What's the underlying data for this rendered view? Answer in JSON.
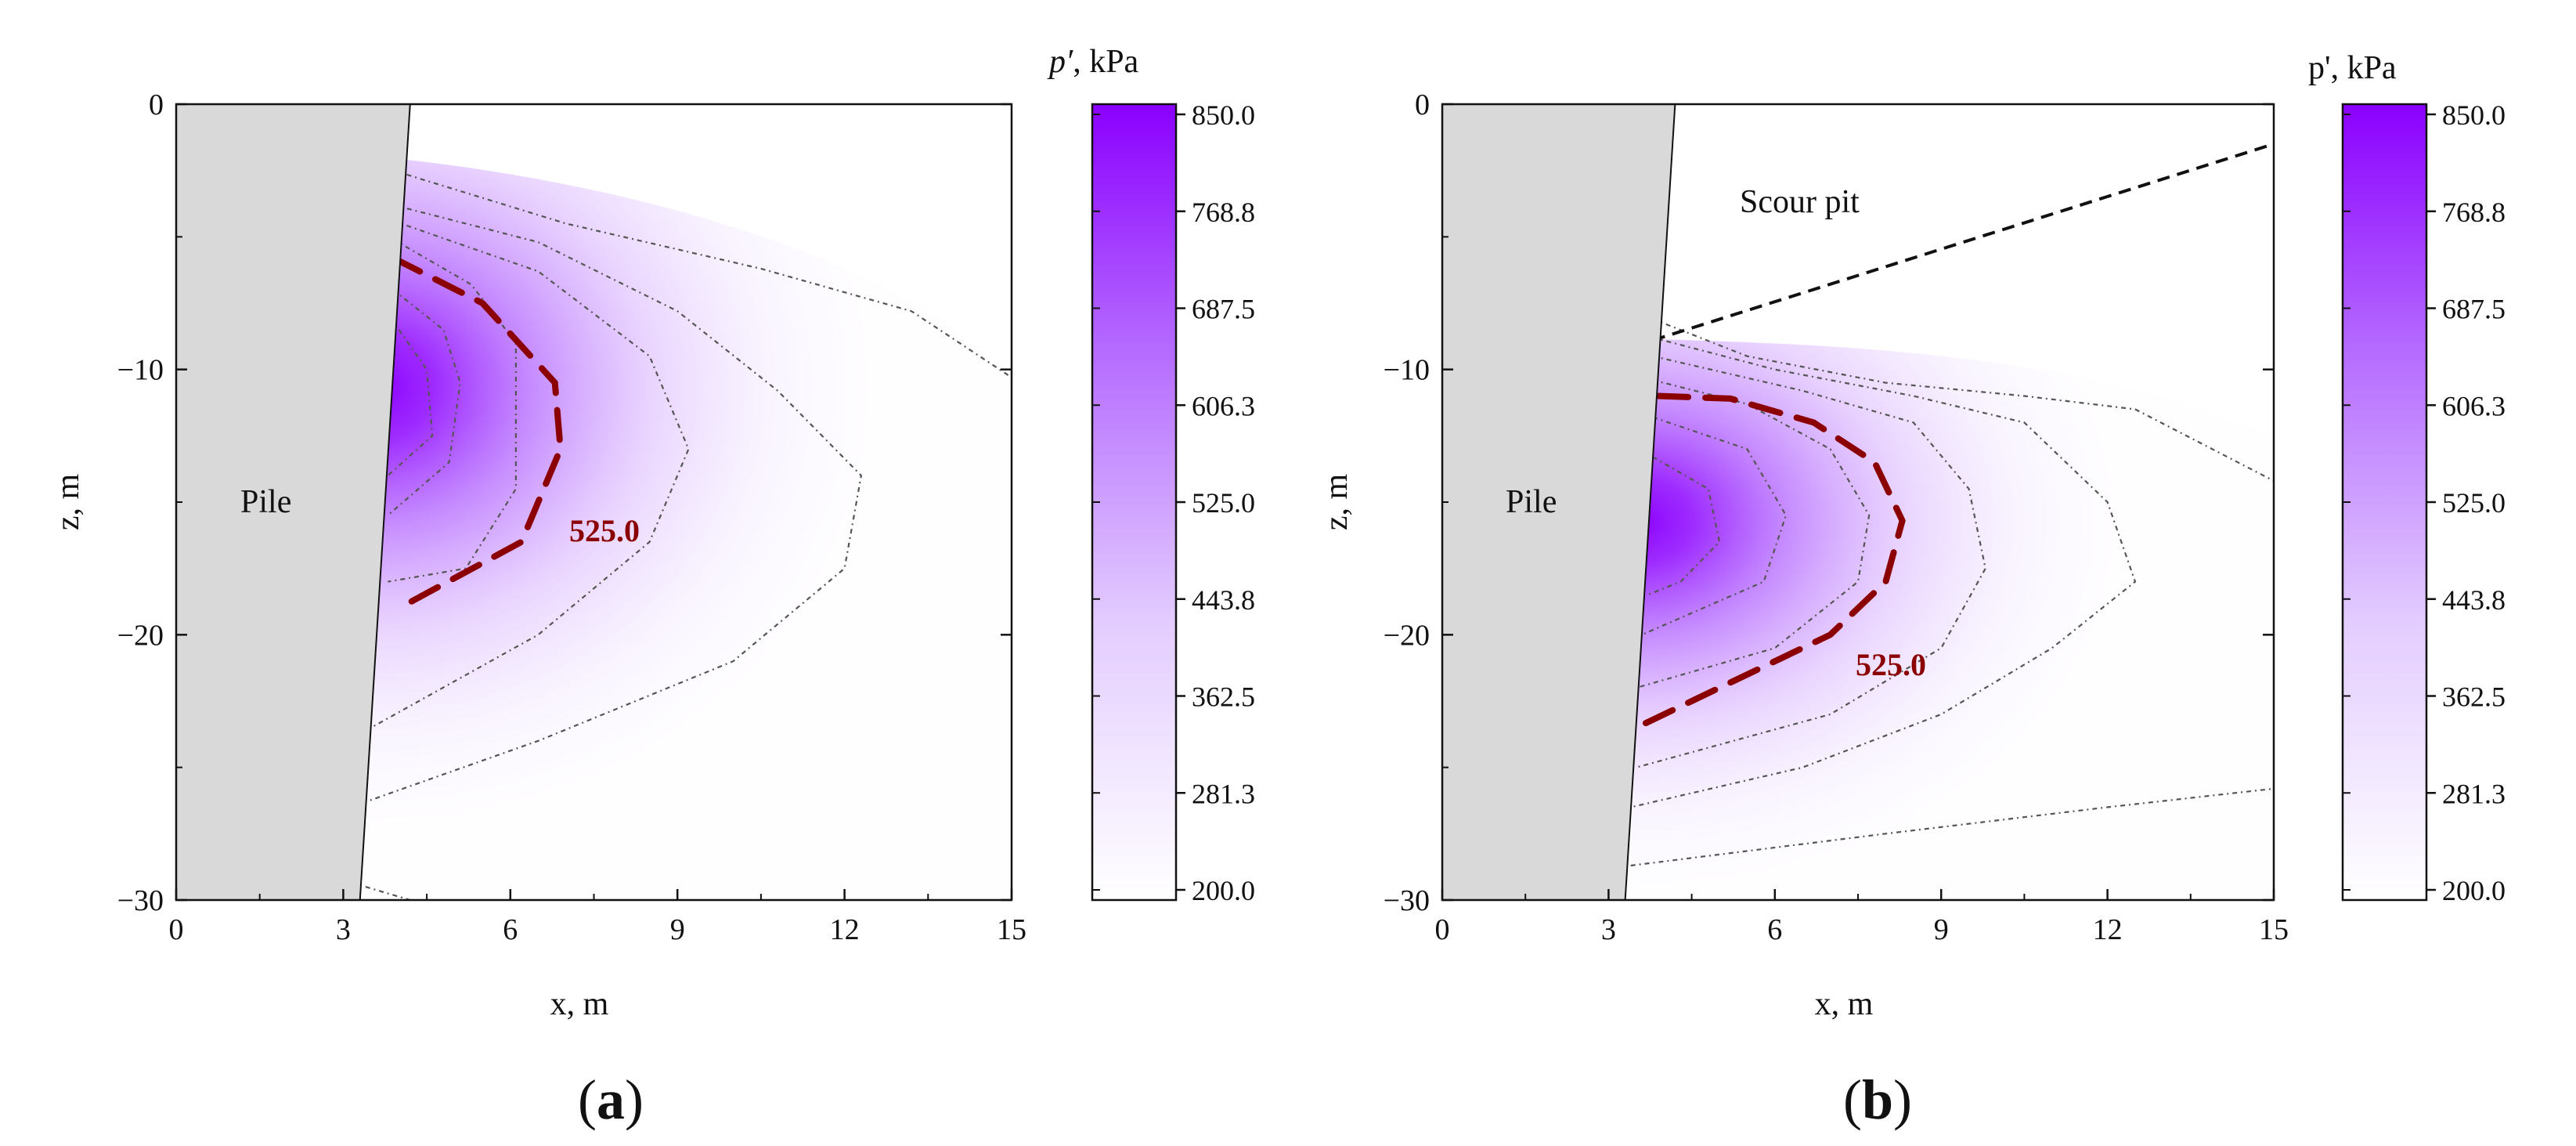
{
  "figure": {
    "panel_labels": [
      {
        "open": "(",
        "letter": "a",
        "close": ")"
      },
      {
        "open": "(",
        "letter": "b",
        "close": ")"
      }
    ]
  },
  "chart_data": [
    {
      "type": "heatmap",
      "panel": "a",
      "title": "",
      "xlabel": "x, m",
      "ylabel": "z, m",
      "xlim": [
        0,
        15
      ],
      "ylim": [
        -30,
        0
      ],
      "xticks": [
        "0",
        "3",
        "6",
        "9",
        "12",
        "15"
      ],
      "yticks": [
        "0",
        "−10",
        "−20",
        "−30"
      ],
      "colorbar": {
        "title_symbol": "p′",
        "title_unit": ", kPa",
        "min": 200.0,
        "max": 850.0,
        "ticks": [
          "850.0",
          "768.8",
          "687.5",
          "606.3",
          "525.0",
          "443.8",
          "362.5",
          "281.3",
          "200.0"
        ],
        "color_low": "#ffffff",
        "color_high": "#8b00ff"
      },
      "pile": {
        "label": "Pile",
        "top_right_x": 4.2,
        "bottom_right_x": 3.3,
        "fill": "#d9d9d9"
      },
      "stress_peak": {
        "x": 4.2,
        "z": -11,
        "value": 850
      },
      "highlight_contour": {
        "label": "525.0",
        "color": "#8b0000",
        "points": [
          [
            3.9,
            -5.8
          ],
          [
            5.5,
            -7.5
          ],
          [
            6.8,
            -10.5
          ],
          [
            6.9,
            -13
          ],
          [
            6.2,
            -16.5
          ],
          [
            4.0,
            -19.0
          ]
        ]
      },
      "contours": [
        [
          [
            3.9,
            -2.5
          ],
          [
            7.0,
            -4.5
          ],
          [
            10.5,
            -6.2
          ],
          [
            13.2,
            -7.8
          ],
          [
            15.0,
            -10.3
          ]
        ],
        [
          [
            3.9,
            -3.8
          ],
          [
            6.5,
            -5.2
          ],
          [
            9.0,
            -7.8
          ],
          [
            10.8,
            -10.8
          ],
          [
            12.3,
            -14.0
          ],
          [
            12.0,
            -17.5
          ],
          [
            10.0,
            -21.0
          ],
          [
            6.5,
            -24.0
          ],
          [
            3.4,
            -26.3
          ]
        ],
        [
          [
            3.9,
            -4.4
          ],
          [
            6.5,
            -6.3
          ],
          [
            8.5,
            -9.5
          ],
          [
            9.2,
            -13.0
          ],
          [
            8.5,
            -16.5
          ],
          [
            6.5,
            -20.0
          ],
          [
            3.5,
            -23.5
          ]
        ],
        [
          [
            3.9,
            -5.1
          ],
          [
            5.3,
            -6.8
          ],
          [
            6.1,
            -9.0
          ],
          [
            6.1,
            -14.5
          ],
          [
            5.2,
            -17.5
          ],
          [
            3.8,
            -18.0
          ]
        ],
        [
          [
            3.9,
            -7.0
          ],
          [
            4.8,
            -8.5
          ],
          [
            5.1,
            -10.5
          ],
          [
            4.9,
            -13.5
          ],
          [
            3.8,
            -15.5
          ]
        ],
        [
          [
            4.0,
            -8.5
          ],
          [
            4.5,
            -10.0
          ],
          [
            4.6,
            -12.5
          ],
          [
            3.8,
            -14.0
          ]
        ],
        [
          [
            3.4,
            -29.5
          ],
          [
            4.2,
            -30.0
          ]
        ]
      ]
    },
    {
      "type": "heatmap",
      "panel": "b",
      "title": "",
      "xlabel": "x, m",
      "ylabel": "z, m",
      "xlim": [
        0,
        15
      ],
      "ylim": [
        -30,
        0
      ],
      "xticks": [
        "0",
        "3",
        "6",
        "9",
        "12",
        "15"
      ],
      "yticks": [
        "0",
        "−10",
        "−20",
        "−30"
      ],
      "colorbar": {
        "title_symbol": "p'",
        "title_unit": ", kPa",
        "min": 200.0,
        "max": 850.0,
        "ticks": [
          "850.0",
          "768.8",
          "687.5",
          "606.3",
          "525.0",
          "443.8",
          "362.5",
          "281.3",
          "200.0"
        ],
        "color_low": "#ffffff",
        "color_high": "#8b00ff"
      },
      "pile": {
        "label": "Pile",
        "top_right_x": 4.2,
        "bottom_right_x": 3.3,
        "fill": "#d9d9d9"
      },
      "scour_pit": {
        "label": "Scour pit",
        "line": [
          [
            3.8,
            -8.9
          ],
          [
            15.0,
            -1.5
          ]
        ]
      },
      "stress_peak": {
        "x": 4.3,
        "z": -16,
        "value": 850
      },
      "highlight_contour": {
        "label": "525.0",
        "color": "#8b0000",
        "points": [
          [
            3.9,
            -11.0
          ],
          [
            5.2,
            -11.1
          ],
          [
            6.7,
            -12.0
          ],
          [
            7.8,
            -13.5
          ],
          [
            8.3,
            -15.7
          ],
          [
            8.0,
            -18.0
          ],
          [
            7.0,
            -20.0
          ],
          [
            5.5,
            -21.5
          ],
          [
            3.5,
            -23.5
          ]
        ]
      },
      "contours": [
        [
          [
            3.8,
            -8.1
          ],
          [
            5.5,
            -9.5
          ],
          [
            8.0,
            -10.5
          ],
          [
            10.5,
            -11.0
          ],
          [
            12.5,
            -11.5
          ],
          [
            15.0,
            -14.2
          ]
        ],
        [
          [
            3.8,
            -8.8
          ],
          [
            6.0,
            -10.0
          ],
          [
            8.5,
            -11.0
          ],
          [
            10.5,
            -12.0
          ],
          [
            12.0,
            -15.0
          ],
          [
            12.5,
            -18.0
          ],
          [
            11.0,
            -20.5
          ],
          [
            9.0,
            -23.0
          ],
          [
            6.5,
            -25.0
          ],
          [
            3.4,
            -26.5
          ]
        ],
        [
          [
            3.8,
            -9.5
          ],
          [
            6.5,
            -10.8
          ],
          [
            8.5,
            -12.0
          ],
          [
            9.5,
            -14.5
          ],
          [
            9.8,
            -17.5
          ],
          [
            9.0,
            -20.5
          ],
          [
            7.0,
            -23.0
          ],
          [
            3.5,
            -25.0
          ]
        ],
        [
          [
            3.8,
            -10.4
          ],
          [
            5.5,
            -11.3
          ],
          [
            7.0,
            -13.0
          ],
          [
            7.7,
            -15.5
          ],
          [
            7.5,
            -18.0
          ],
          [
            6.0,
            -20.5
          ],
          [
            3.5,
            -22.0
          ]
        ],
        [
          [
            3.8,
            -11.8
          ],
          [
            5.5,
            -13.0
          ],
          [
            6.2,
            -15.5
          ],
          [
            5.8,
            -18.0
          ],
          [
            3.6,
            -20.0
          ]
        ],
        [
          [
            3.8,
            -13.3
          ],
          [
            4.8,
            -14.5
          ],
          [
            5.0,
            -16.5
          ],
          [
            4.3,
            -18.0
          ],
          [
            3.7,
            -18.5
          ]
        ],
        [
          [
            3.4,
            -28.7
          ],
          [
            8.0,
            -27.5
          ],
          [
            12.0,
            -26.5
          ],
          [
            15.0,
            -25.8
          ]
        ]
      ]
    }
  ]
}
